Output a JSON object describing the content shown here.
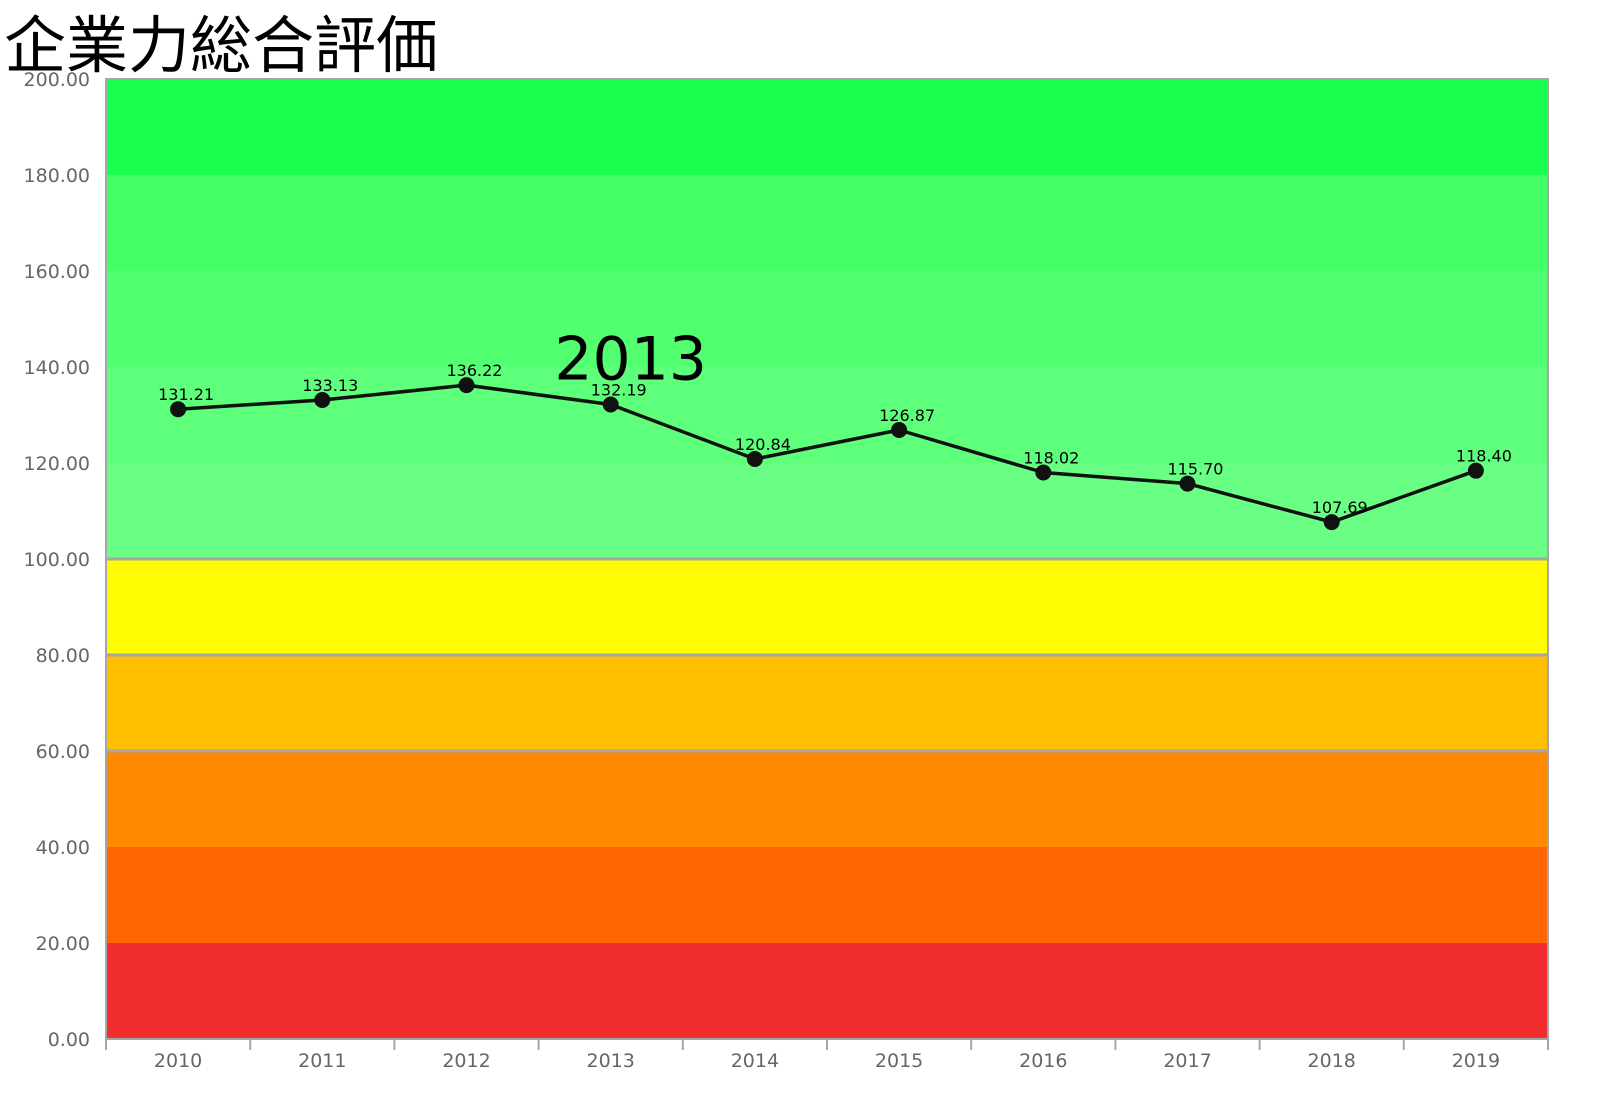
{
  "chart_data": {
    "type": "line",
    "title": "企業力総合評価",
    "annotation": "2013",
    "categories": [
      "2010",
      "2011",
      "2012",
      "2013",
      "2014",
      "2015",
      "2016",
      "2017",
      "2018",
      "2019"
    ],
    "values": [
      131.21,
      133.13,
      136.22,
      132.19,
      120.84,
      126.87,
      118.02,
      115.7,
      107.69,
      118.4
    ],
    "data_labels": [
      "131.21",
      "133.13",
      "136.22",
      "132.19",
      "120.84",
      "126.87",
      "118.02",
      "115.70",
      "107.69",
      "118.40"
    ],
    "ylim": [
      0,
      200
    ],
    "yticks": [
      0,
      20,
      40,
      60,
      80,
      100,
      120,
      140,
      160,
      180,
      200
    ],
    "ytick_labels": [
      "0.00",
      "20.00",
      "40.00",
      "60.00",
      "80.00",
      "100.00",
      "120.00",
      "140.00",
      "160.00",
      "180.00",
      "200.00"
    ],
    "bands": [
      {
        "from": 0,
        "to": 20,
        "color": "#f22d30"
      },
      {
        "from": 20,
        "to": 40,
        "color": "#ff6500"
      },
      {
        "from": 40,
        "to": 60,
        "color": "#ff8a00"
      },
      {
        "from": 60,
        "to": 80,
        "color": "#ffbf00"
      },
      {
        "from": 80,
        "to": 100,
        "color": "#fffb00"
      },
      {
        "from": 100,
        "to": 120,
        "color": "#69ff84"
      },
      {
        "from": 120,
        "to": 140,
        "color": "#5dff7b"
      },
      {
        "from": 140,
        "to": 160,
        "color": "#51ff71"
      },
      {
        "from": 160,
        "to": 180,
        "color": "#45ff67"
      },
      {
        "from": 180,
        "to": 200,
        "color": "#1bff4e"
      }
    ],
    "line_color": "#111111",
    "grid": false,
    "legend": "none"
  }
}
